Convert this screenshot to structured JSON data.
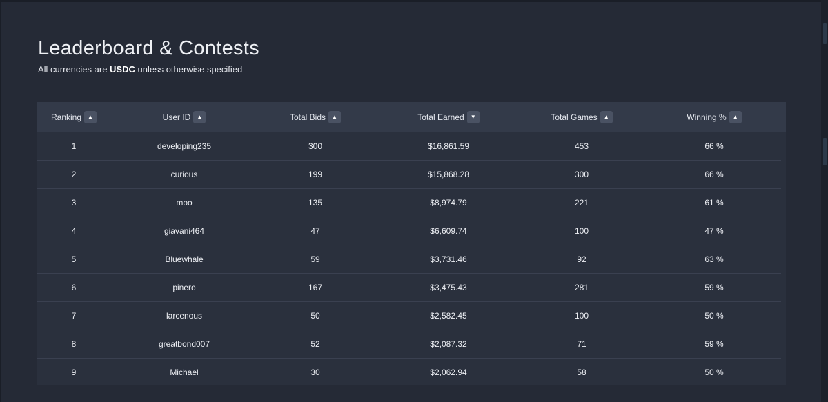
{
  "page": {
    "title": "Leaderboard & Contests",
    "subtitle_pre": "All currencies are ",
    "subtitle_bold": "USDC",
    "subtitle_post": " unless otherwise specified"
  },
  "table": {
    "columns": [
      {
        "label": "Ranking",
        "sort_icon": "caret-up-icon",
        "sort_glyph": "▲"
      },
      {
        "label": "User ID",
        "sort_icon": "caret-up-icon",
        "sort_glyph": "▲"
      },
      {
        "label": "Total Bids",
        "sort_icon": "caret-up-icon",
        "sort_glyph": "▲"
      },
      {
        "label": "Total Earned",
        "sort_icon": "caret-down-icon",
        "sort_glyph": "▼"
      },
      {
        "label": "Total Games",
        "sort_icon": "caret-up-icon",
        "sort_glyph": "▲"
      },
      {
        "label": "Winning %",
        "sort_icon": "caret-up-icon",
        "sort_glyph": "▲"
      }
    ],
    "rows": [
      [
        "1",
        "developing235",
        "300",
        "$16,861.59",
        "453",
        "66 %"
      ],
      [
        "2",
        "curious",
        "199",
        "$15,868.28",
        "300",
        "66 %"
      ],
      [
        "3",
        "moo",
        "135",
        "$8,974.79",
        "221",
        "61 %"
      ],
      [
        "4",
        "giavani464",
        "47",
        "$6,609.74",
        "100",
        "47 %"
      ],
      [
        "5",
        "Bluewhale",
        "59",
        "$3,731.46",
        "92",
        "63 %"
      ],
      [
        "6",
        "pinero",
        "167",
        "$3,475.43",
        "281",
        "59 %"
      ],
      [
        "7",
        "larcenous",
        "50",
        "$2,582.45",
        "100",
        "50 %"
      ],
      [
        "8",
        "greatbond007",
        "52",
        "$2,087.32",
        "71",
        "59 %"
      ],
      [
        "9",
        "Michael",
        "30",
        "$2,062.94",
        "58",
        "50 %"
      ]
    ]
  },
  "colors": {
    "background": "#252a36",
    "table_bg": "#2a303d",
    "header_bg": "#333a49",
    "sort_button_bg": "#4a5263",
    "row_divider": "#3a4050"
  }
}
